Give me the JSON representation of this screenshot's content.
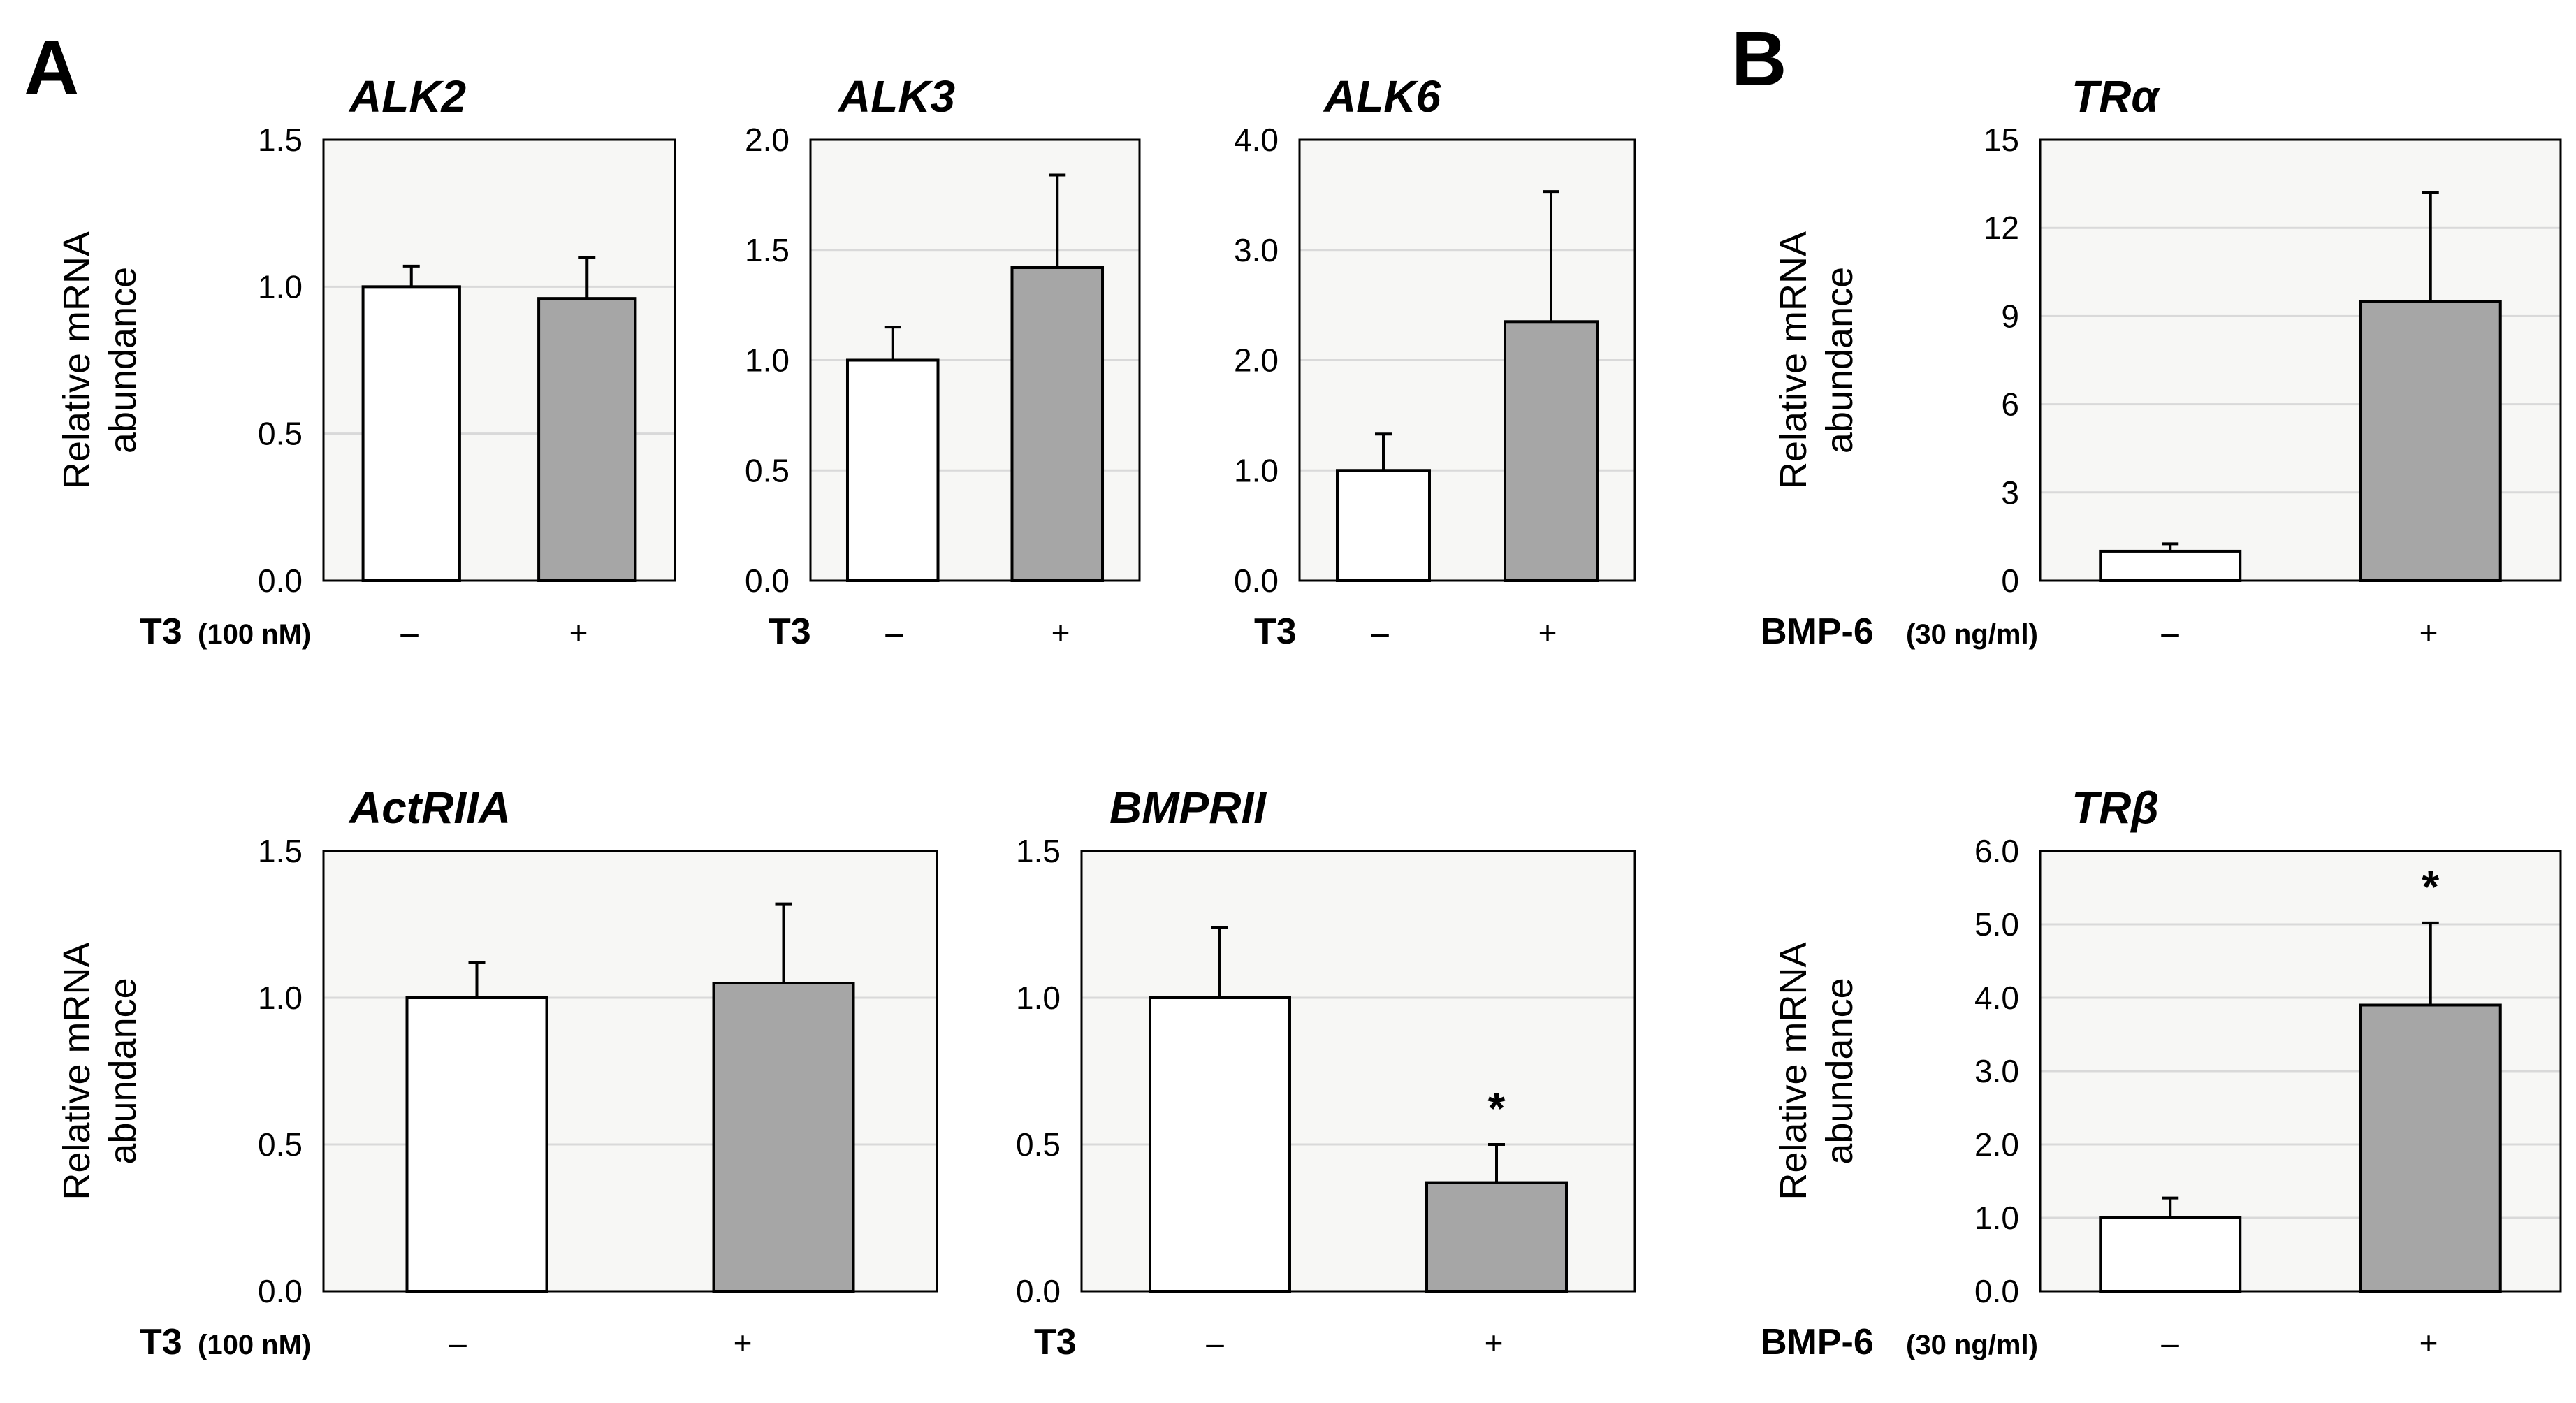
{
  "panel_letters": [
    "A",
    "B"
  ],
  "colors": {
    "plot_bg": "#f7f7f5",
    "gridline": "#d9d9d9",
    "control_bar": "#ffffff",
    "treated_bar": "#a6a6a6",
    "stroke": "#000000"
  },
  "chart_data": [
    {
      "id": "alk2",
      "panel": "A",
      "type": "bar",
      "title": "ALK2",
      "ylabel": "Relative mRNA\nabundance",
      "ylim": [
        0,
        1.5
      ],
      "yticks": [
        "0.0",
        "0.5",
        "1.0",
        "1.5"
      ],
      "treatment": {
        "name": "T3",
        "conc": "(100 nM)"
      },
      "categories": [
        "–",
        "+"
      ],
      "values": [
        1.0,
        0.96
      ],
      "errors": [
        0.07,
        0.14
      ],
      "significance": [
        "",
        ""
      ]
    },
    {
      "id": "alk3",
      "panel": "A",
      "type": "bar",
      "title": "ALK3",
      "ylabel": "",
      "ylim": [
        0,
        2.0
      ],
      "yticks": [
        "0.0",
        "0.5",
        "1.0",
        "1.5",
        "2.0"
      ],
      "treatment": {
        "name": "T3",
        "conc": ""
      },
      "categories": [
        "–",
        "+"
      ],
      "values": [
        1.0,
        1.42
      ],
      "errors": [
        0.15,
        0.42
      ],
      "significance": [
        "",
        ""
      ]
    },
    {
      "id": "alk6",
      "panel": "A",
      "type": "bar",
      "title": "ALK6",
      "ylabel": "",
      "ylim": [
        0,
        4.0
      ],
      "yticks": [
        "0.0",
        "1.0",
        "2.0",
        "3.0",
        "4.0"
      ],
      "treatment": {
        "name": "T3",
        "conc": ""
      },
      "categories": [
        "–",
        "+"
      ],
      "values": [
        1.0,
        2.35
      ],
      "errors": [
        0.33,
        1.18
      ],
      "significance": [
        "",
        ""
      ]
    },
    {
      "id": "actriia",
      "panel": "A",
      "type": "bar",
      "title": "ActRIIA",
      "ylabel": "Relative mRNA\nabundance",
      "ylim": [
        0,
        1.5
      ],
      "yticks": [
        "0.0",
        "0.5",
        "1.0",
        "1.5"
      ],
      "treatment": {
        "name": "T3",
        "conc": "(100 nM)"
      },
      "categories": [
        "–",
        "+"
      ],
      "values": [
        1.0,
        1.05
      ],
      "errors": [
        0.12,
        0.27
      ],
      "significance": [
        "",
        ""
      ]
    },
    {
      "id": "bmprii",
      "panel": "A",
      "type": "bar",
      "title": "BMPRII",
      "ylabel": "",
      "ylim": [
        0,
        1.5
      ],
      "yticks": [
        "0.0",
        "0.5",
        "1.0",
        "1.5"
      ],
      "treatment": {
        "name": "T3",
        "conc": ""
      },
      "categories": [
        "–",
        "+"
      ],
      "values": [
        1.0,
        0.37
      ],
      "errors": [
        0.24,
        0.13
      ],
      "significance": [
        "",
        "*"
      ]
    },
    {
      "id": "tra",
      "panel": "B",
      "type": "bar",
      "title": "TRα",
      "ylabel": "Relative mRNA\nabundance",
      "ylim": [
        0,
        15
      ],
      "yticks": [
        "0",
        "3",
        "6",
        "9",
        "12",
        "15"
      ],
      "treatment": {
        "name": "BMP-6",
        "conc": "(30 ng/ml)"
      },
      "categories": [
        "–",
        "+"
      ],
      "values": [
        1.0,
        9.5
      ],
      "errors": [
        0.25,
        3.7
      ],
      "significance": [
        "",
        ""
      ]
    },
    {
      "id": "trb",
      "panel": "B",
      "type": "bar",
      "title": "TRβ",
      "ylabel": "Relative mRNA\nabundance",
      "ylim": [
        0,
        6.0
      ],
      "yticks": [
        "0.0",
        "1.0",
        "2.0",
        "3.0",
        "4.0",
        "5.0",
        "6.0"
      ],
      "treatment": {
        "name": "BMP-6",
        "conc": "(30 ng/ml)"
      },
      "categories": [
        "–",
        "+"
      ],
      "values": [
        1.0,
        3.9
      ],
      "errors": [
        0.27,
        1.12
      ],
      "significance": [
        "",
        "*"
      ]
    }
  ]
}
